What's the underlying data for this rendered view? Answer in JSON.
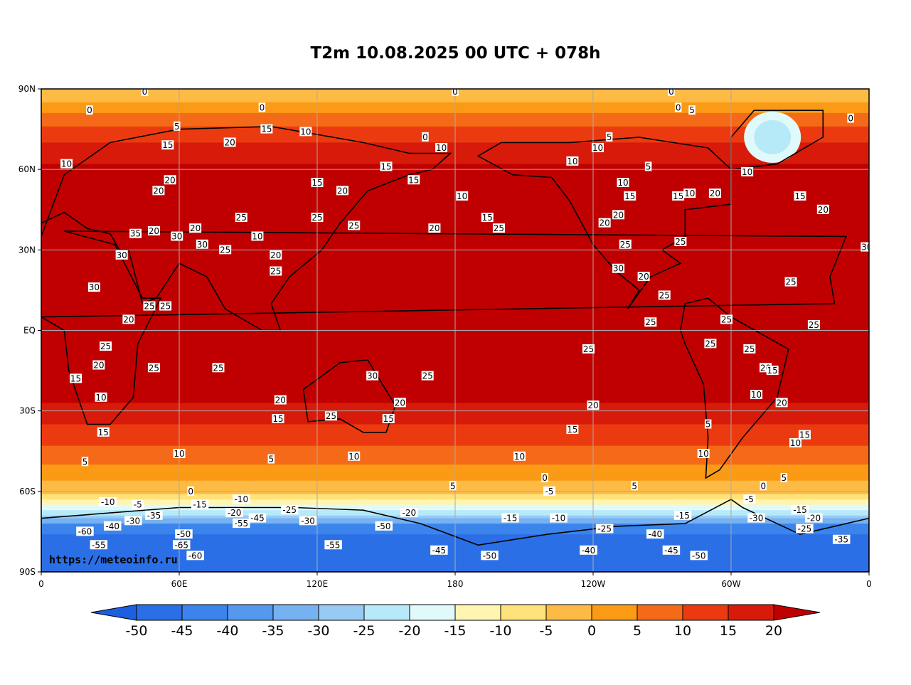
{
  "title": "T2m 10.08.2025 00 UTC + 078h",
  "watermark": "https://meteoinfo.ru",
  "lat_labels": [
    "90N",
    "60N",
    "30N",
    "EQ",
    "30S",
    "60S",
    "90S"
  ],
  "lon_labels": [
    "0",
    "60E",
    "120E",
    "180",
    "120W",
    "60W",
    "0"
  ],
  "colorbar": {
    "levels": [
      "-50",
      "-45",
      "-40",
      "-35",
      "-30",
      "-25",
      "-20",
      "-15",
      "-10",
      "-5",
      "0",
      "5",
      "10",
      "15",
      "20"
    ],
    "colors": [
      "#2b6fe6",
      "#3b84ec",
      "#5599ee",
      "#76b2f2",
      "#97cbf6",
      "#b7eaf8",
      "#e0fafc",
      "#fff5b0",
      "#ffe27a",
      "#fdbb45",
      "#fb9a14",
      "#f56a18",
      "#ec3a10",
      "#d71a0a"
    ],
    "below_color": "#1e5ee0",
    "above_color": "#c00000"
  },
  "contour_labels": [
    {
      "t": "0",
      "lon": 45,
      "lat": 89
    },
    {
      "t": "0",
      "lon": 21,
      "lat": 82
    },
    {
      "t": "0",
      "lon": 96,
      "lat": 83
    },
    {
      "t": "0",
      "lon": 180,
      "lat": 89
    },
    {
      "t": "0",
      "lon": 274,
      "lat": 89
    },
    {
      "t": "0",
      "lon": 277,
      "lat": 83
    },
    {
      "t": "0",
      "lon": 352,
      "lat": 79
    },
    {
      "t": "0",
      "lon": 167,
      "lat": 72
    },
    {
      "t": "5",
      "lon": 59,
      "lat": 76
    },
    {
      "t": "5",
      "lon": 247,
      "lat": 72
    },
    {
      "t": "5",
      "lon": 264,
      "lat": 61
    },
    {
      "t": "5",
      "lon": 283,
      "lat": 82
    },
    {
      "t": "10",
      "lon": 11,
      "lat": 62
    },
    {
      "t": "10",
      "lon": 115,
      "lat": 74
    },
    {
      "t": "10",
      "lon": 174,
      "lat": 68
    },
    {
      "t": "10",
      "lon": 231,
      "lat": 63
    },
    {
      "t": "10",
      "lon": 242,
      "lat": 68
    },
    {
      "t": "10",
      "lon": 253,
      "lat": 55
    },
    {
      "t": "10",
      "lon": 282,
      "lat": 51
    },
    {
      "t": "10",
      "lon": 307,
      "lat": 59
    },
    {
      "t": "10",
      "lon": 183,
      "lat": 50
    },
    {
      "t": "10",
      "lon": 94,
      "lat": 35
    },
    {
      "t": "15",
      "lon": 98,
      "lat": 75
    },
    {
      "t": "15",
      "lon": 55,
      "lat": 69
    },
    {
      "t": "15",
      "lon": 150,
      "lat": 61
    },
    {
      "t": "15",
      "lon": 162,
      "lat": 56
    },
    {
      "t": "15",
      "lon": 120,
      "lat": 55
    },
    {
      "t": "15",
      "lon": 194,
      "lat": 42
    },
    {
      "t": "15",
      "lon": 256,
      "lat": 50
    },
    {
      "t": "15",
      "lon": 277,
      "lat": 50
    },
    {
      "t": "15",
      "lon": 330,
      "lat": 50
    },
    {
      "t": "20",
      "lon": 82,
      "lat": 70
    },
    {
      "t": "20",
      "lon": 56,
      "lat": 56
    },
    {
      "t": "20",
      "lon": 51,
      "lat": 52
    },
    {
      "t": "20",
      "lon": 131,
      "lat": 52
    },
    {
      "t": "20",
      "lon": 171,
      "lat": 38
    },
    {
      "t": "20",
      "lon": 67,
      "lat": 38
    },
    {
      "t": "20",
      "lon": 49,
      "lat": 37
    },
    {
      "t": "20",
      "lon": 102,
      "lat": 28
    },
    {
      "t": "20",
      "lon": 251,
      "lat": 43
    },
    {
      "t": "20",
      "lon": 245,
      "lat": 40
    },
    {
      "t": "20",
      "lon": 293,
      "lat": 51
    },
    {
      "t": "20",
      "lon": 340,
      "lat": 45
    },
    {
      "t": "20",
      "lon": 262,
      "lat": 20
    },
    {
      "t": "20",
      "lon": 38,
      "lat": 4
    },
    {
      "t": "20",
      "lon": 25,
      "lat": -13
    },
    {
      "t": "20",
      "lon": 104,
      "lat": -26
    },
    {
      "t": "20",
      "lon": 156,
      "lat": -27
    },
    {
      "t": "20",
      "lon": 240,
      "lat": -28
    },
    {
      "t": "20",
      "lon": 315,
      "lat": -14
    },
    {
      "t": "20",
      "lon": 322,
      "lat": -27
    },
    {
      "t": "25",
      "lon": 87,
      "lat": 42
    },
    {
      "t": "25",
      "lon": 120,
      "lat": 42
    },
    {
      "t": "25",
      "lon": 136,
      "lat": 39
    },
    {
      "t": "25",
      "lon": 199,
      "lat": 38
    },
    {
      "t": "25",
      "lon": 80,
      "lat": 30
    },
    {
      "t": "25",
      "lon": 102,
      "lat": 22
    },
    {
      "t": "25",
      "lon": 254,
      "lat": 32
    },
    {
      "t": "25",
      "lon": 278,
      "lat": 33
    },
    {
      "t": "25",
      "lon": 326,
      "lat": 18
    },
    {
      "t": "25",
      "lon": 271,
      "lat": 13
    },
    {
      "t": "25",
      "lon": 265,
      "lat": 3
    },
    {
      "t": "25",
      "lon": 298,
      "lat": 4
    },
    {
      "t": "25",
      "lon": 336,
      "lat": 2
    },
    {
      "t": "25",
      "lon": 47,
      "lat": 9
    },
    {
      "t": "25",
      "lon": 54,
      "lat": 9
    },
    {
      "t": "25",
      "lon": 28,
      "lat": -6
    },
    {
      "t": "25",
      "lon": 49,
      "lat": -14
    },
    {
      "t": "25",
      "lon": 77,
      "lat": -14
    },
    {
      "t": "25",
      "lon": 168,
      "lat": -17
    },
    {
      "t": "25",
      "lon": 238,
      "lat": -7
    },
    {
      "t": "25",
      "lon": 291,
      "lat": -5
    },
    {
      "t": "25",
      "lon": 308,
      "lat": -7
    },
    {
      "t": "25",
      "lon": 126,
      "lat": -32
    },
    {
      "t": "30",
      "lon": 59,
      "lat": 35
    },
    {
      "t": "30",
      "lon": 70,
      "lat": 32
    },
    {
      "t": "30",
      "lon": 35,
      "lat": 28
    },
    {
      "t": "30",
      "lon": 23,
      "lat": 16
    },
    {
      "t": "30",
      "lon": 144,
      "lat": -17
    },
    {
      "t": "30",
      "lon": 251,
      "lat": 23
    },
    {
      "t": "30",
      "lon": 359,
      "lat": 31
    },
    {
      "t": "35",
      "lon": 41,
      "lat": 36
    },
    {
      "t": "10",
      "lon": 26,
      "lat": -25
    },
    {
      "t": "15",
      "lon": 15,
      "lat": -18
    },
    {
      "t": "15",
      "lon": 27,
      "lat": -38
    },
    {
      "t": "15",
      "lon": 103,
      "lat": -33
    },
    {
      "t": "15",
      "lon": 151,
      "lat": -33
    },
    {
      "t": "15",
      "lon": 231,
      "lat": -37
    },
    {
      "t": "15",
      "lon": 318,
      "lat": -15
    },
    {
      "t": "15",
      "lon": 332,
      "lat": -39
    },
    {
      "t": "10",
      "lon": 60,
      "lat": -46
    },
    {
      "t": "10",
      "lon": 136,
      "lat": -47
    },
    {
      "t": "10",
      "lon": 208,
      "lat": -47
    },
    {
      "t": "10",
      "lon": 311,
      "lat": -24
    },
    {
      "t": "10",
      "lon": 328,
      "lat": -42
    },
    {
      "t": "10",
      "lon": 288,
      "lat": -46
    },
    {
      "t": "5",
      "lon": 19,
      "lat": -49
    },
    {
      "t": "5",
      "lon": 100,
      "lat": -48
    },
    {
      "t": "5",
      "lon": 179,
      "lat": -58
    },
    {
      "t": "5",
      "lon": 258,
      "lat": -58
    },
    {
      "t": "5",
      "lon": 290,
      "lat": -35
    },
    {
      "t": "5",
      "lon": 323,
      "lat": -55
    },
    {
      "t": "0",
      "lon": 65,
      "lat": -60
    },
    {
      "t": "0",
      "lon": 219,
      "lat": -55
    },
    {
      "t": "0",
      "lon": 314,
      "lat": -58
    },
    {
      "t": "-5",
      "lon": 42,
      "lat": -65
    },
    {
      "t": "-5",
      "lon": 221,
      "lat": -60
    },
    {
      "t": "-5",
      "lon": 308,
      "lat": -63
    },
    {
      "t": "-10",
      "lon": 29,
      "lat": -64
    },
    {
      "t": "-10",
      "lon": 87,
      "lat": -63
    },
    {
      "t": "-10",
      "lon": 225,
      "lat": -70
    },
    {
      "t": "-15",
      "lon": 69,
      "lat": -65
    },
    {
      "t": "-15",
      "lon": 204,
      "lat": -70
    },
    {
      "t": "-15",
      "lon": 279,
      "lat": -69
    },
    {
      "t": "-15",
      "lon": 330,
      "lat": -67
    },
    {
      "t": "-20",
      "lon": 84,
      "lat": -68
    },
    {
      "t": "-20",
      "lon": 160,
      "lat": -68
    },
    {
      "t": "-20",
      "lon": 336,
      "lat": -70
    },
    {
      "t": "-25",
      "lon": 108,
      "lat": -67
    },
    {
      "t": "-25",
      "lon": 245,
      "lat": -74
    },
    {
      "t": "-25",
      "lon": 332,
      "lat": -74
    },
    {
      "t": "-30",
      "lon": 40,
      "lat": -71
    },
    {
      "t": "-30",
      "lon": 116,
      "lat": -71
    },
    {
      "t": "-30",
      "lon": 311,
      "lat": -70
    },
    {
      "t": "-35",
      "lon": 49,
      "lat": -69
    },
    {
      "t": "-35",
      "lon": 348,
      "lat": -78
    },
    {
      "t": "-40",
      "lon": 31,
      "lat": -73
    },
    {
      "t": "-40",
      "lon": 267,
      "lat": -76
    },
    {
      "t": "-40",
      "lon": 238,
      "lat": -82
    },
    {
      "t": "-45",
      "lon": 94,
      "lat": -70
    },
    {
      "t": "-45",
      "lon": 173,
      "lat": -82
    },
    {
      "t": "-45",
      "lon": 274,
      "lat": -82
    },
    {
      "t": "-50",
      "lon": 62,
      "lat": -76
    },
    {
      "t": "-50",
      "lon": 149,
      "lat": -73
    },
    {
      "t": "-50",
      "lon": 195,
      "lat": -84
    },
    {
      "t": "-50",
      "lon": 286,
      "lat": -84
    },
    {
      "t": "-55",
      "lon": 25,
      "lat": -80
    },
    {
      "t": "-55",
      "lon": 127,
      "lat": -80
    },
    {
      "t": "-55",
      "lon": 87,
      "lat": -72
    },
    {
      "t": "-60",
      "lon": 19,
      "lat": -75
    },
    {
      "t": "-60",
      "lon": 67,
      "lat": -84
    },
    {
      "t": "-65",
      "lon": 61,
      "lat": -80
    }
  ]
}
